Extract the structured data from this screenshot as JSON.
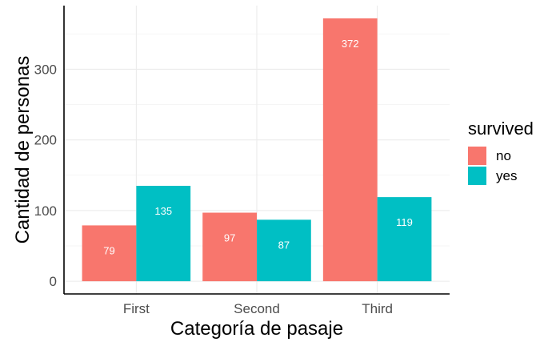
{
  "chart_data": {
    "type": "bar",
    "categories": [
      "First",
      "Second",
      "Third"
    ],
    "series": [
      {
        "name": "no",
        "values": [
          79,
          97,
          372
        ],
        "color": "#F8766D"
      },
      {
        "name": "yes",
        "values": [
          135,
          87,
          119
        ],
        "color": "#00BFC4"
      }
    ],
    "xlabel": "Categoría de pasaje",
    "ylabel": "Cantidad de personas",
    "yticks": [
      0,
      100,
      200,
      300
    ],
    "ylim": [
      -18,
      390
    ],
    "grid": true,
    "legend": {
      "title": "survived",
      "position": "right"
    }
  }
}
